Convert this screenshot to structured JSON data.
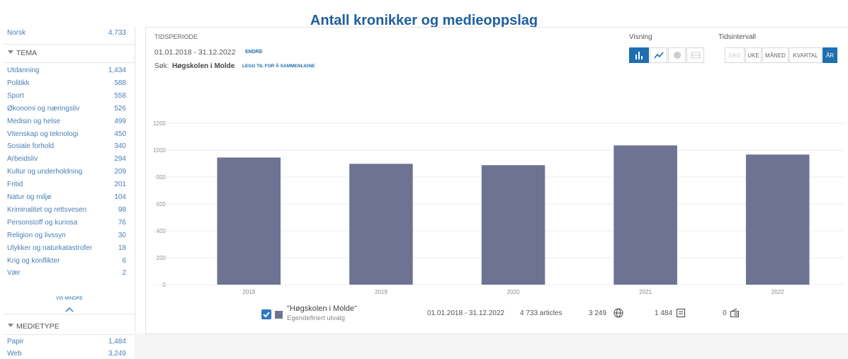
{
  "header": {
    "title": "Antall kronikker og medieoppslag"
  },
  "sidebar": {
    "top": {
      "label": "Norsk",
      "count": "4,733"
    },
    "tema": {
      "title": "TEMA",
      "items": [
        {
          "label": "Utdanning",
          "count": "1,434"
        },
        {
          "label": "Politikk",
          "count": "588"
        },
        {
          "label": "Sport",
          "count": "558"
        },
        {
          "label": "Økonomi og næringsliv",
          "count": "526"
        },
        {
          "label": "Medisin og helse",
          "count": "499"
        },
        {
          "label": "Vitenskap og teknologi",
          "count": "450"
        },
        {
          "label": "Sosiale forhold",
          "count": "340"
        },
        {
          "label": "Arbeidsliv",
          "count": "294"
        },
        {
          "label": "Kultur og underholdning",
          "count": "209"
        },
        {
          "label": "Fritid",
          "count": "201"
        },
        {
          "label": "Natur og miljø",
          "count": "104"
        },
        {
          "label": "Kriminalitet og rettsvesen",
          "count": "98"
        },
        {
          "label": "Personstoff og kuriosa",
          "count": "76"
        },
        {
          "label": "Religion og livssyn",
          "count": "30"
        },
        {
          "label": "Ulykker og naturkatastrofer",
          "count": "18"
        },
        {
          "label": "Krig og konflikter",
          "count": "6"
        },
        {
          "label": "Vær",
          "count": "2"
        }
      ],
      "toggle": "VIS MINDRE"
    },
    "medietype": {
      "title": "MEDIETYPE",
      "items": [
        {
          "label": "Papir",
          "count": "1,484"
        },
        {
          "label": "Web",
          "count": "3,249"
        }
      ]
    }
  },
  "controls": {
    "period_label": "TIDSPERIODE",
    "period": "01.01.2018 - 31.12.2022",
    "change": "ENDRE",
    "search_label": "Søk:",
    "search": "Høgskolen i Molde",
    "compare": "LEGG TIL FOR Å SAMMENLIGNE",
    "view_label": "Visning",
    "interval_label": "Tidsintervall",
    "intervals": [
      "DAG",
      "UKE",
      "MÅNED",
      "KVARTAL",
      "ÅR"
    ]
  },
  "chart_data": {
    "type": "bar",
    "categories": [
      "2018",
      "2019",
      "2020",
      "2021",
      "2022"
    ],
    "values": [
      945,
      898,
      888,
      1035,
      967
    ],
    "color": "#6e7393",
    "ylim": [
      0,
      1200
    ],
    "yticks": [
      0,
      200,
      400,
      600,
      800,
      1000,
      1200
    ],
    "grid": true
  },
  "legend": {
    "name": "\"Høgskolen i Molde\"",
    "subtitle": "Egendefinert utvalg",
    "period": "01.01.2018 - 31.12.2022",
    "articles": "4 733 articles",
    "web": "3 249",
    "print": "1 484",
    "radio": "0"
  }
}
